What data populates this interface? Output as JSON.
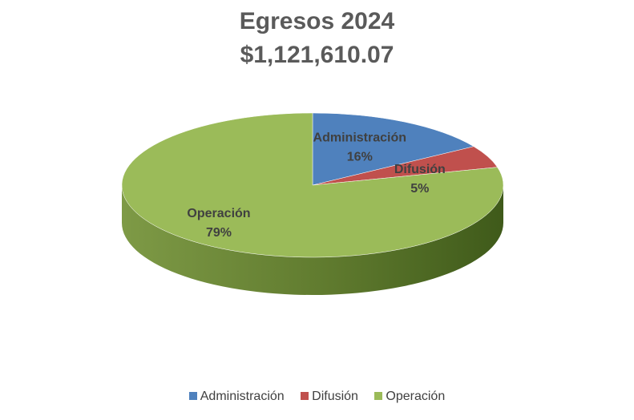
{
  "chart_data": {
    "type": "pie",
    "title": "Egresos 2024",
    "subtitle": "$1,121,610.07",
    "categories": [
      "Administración",
      "Difusión",
      "Operación"
    ],
    "values": [
      16,
      5,
      79
    ],
    "data_labels": [
      "16%",
      "5%",
      "79%"
    ],
    "colors": [
      "#4f81bd",
      "#c0504d",
      "#9bbb59"
    ],
    "legend_position": "bottom",
    "style": "3d"
  }
}
